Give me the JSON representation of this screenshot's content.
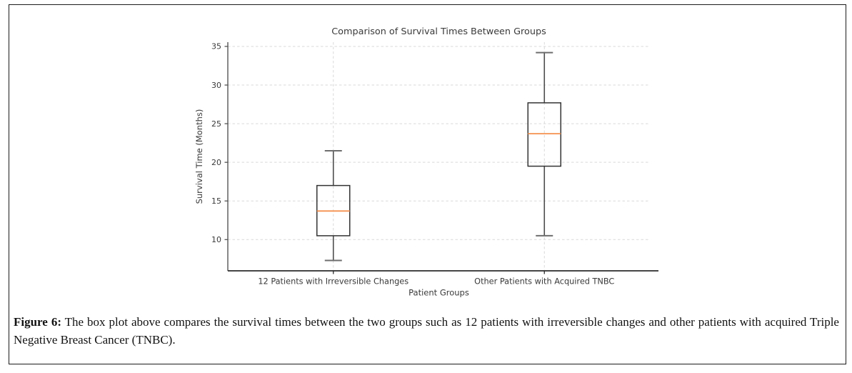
{
  "figure": {
    "caption_label": "Figure 6:",
    "caption_text": "The box plot above compares the survival times between the two groups such as 12 patients with irreversible changes and other patients with acquired Triple Negative Breast Cancer (TNBC)."
  },
  "chart_data": {
    "type": "boxplot",
    "title": "Comparison of Survival Times Between Groups",
    "xlabel": "Patient Groups",
    "ylabel": "Survival Time (Months)",
    "ylim": [
      5.96,
      35.55
    ],
    "yticks": [
      10,
      15,
      20,
      25,
      30,
      35
    ],
    "grid": true,
    "legend_position": "none",
    "categories": [
      "12 Patients with Irreversible Changes",
      "Other Patients with Acquired TNBC"
    ],
    "series": [
      {
        "name": "12 Patients with Irreversible Changes",
        "whisker_low": 7.3,
        "q1": 10.5,
        "median": 13.7,
        "q3": 17.0,
        "whisker_high": 21.5
      },
      {
        "name": "Other Patients with Acquired TNBC",
        "whisker_low": 10.5,
        "q1": 19.5,
        "median": 23.7,
        "q3": 27.7,
        "whisker_high": 34.2
      }
    ],
    "colors": {
      "median": "#f5914f",
      "box_edge": "#333333",
      "whisker": "#4d4d4d",
      "cap": "#6e6e6e",
      "grid": "#d9d9d9",
      "spine_left": "#555555",
      "spine_bottom": "#2b2b2b",
      "text": "#3a3a3a"
    }
  }
}
